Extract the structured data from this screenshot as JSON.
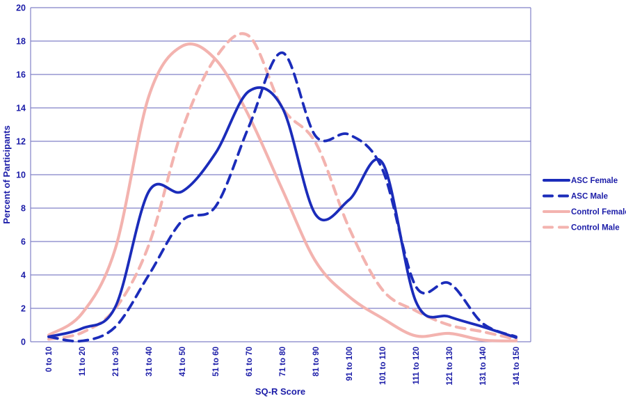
{
  "chart_data": {
    "type": "line",
    "title": "",
    "xlabel": "SQ-R Score",
    "ylabel": "Percent of Participants",
    "categories": [
      "0 to 10",
      "11 to 20",
      "21 to 30",
      "31 to 40",
      "41 to 50",
      "51 to 60",
      "61 to 70",
      "71 to 80",
      "81 to 90",
      "91 to 100",
      "101 to 110",
      "111 to 120",
      "121 to 130",
      "131 to 140",
      "141 to 150"
    ],
    "series": [
      {
        "name": "ASC Female",
        "color": "#1B2CBA",
        "dash": false,
        "values": [
          0.3,
          0.8,
          2.1,
          9.0,
          9.0,
          11.3,
          15.0,
          14.0,
          7.6,
          8.5,
          10.7,
          2.4,
          1.5,
          0.9,
          0.25
        ]
      },
      {
        "name": "ASC Male",
        "color": "#1B2CBA",
        "dash": true,
        "values": [
          0.3,
          0.05,
          0.9,
          4.0,
          7.25,
          8.1,
          12.9,
          17.3,
          12.3,
          12.4,
          10.3,
          3.3,
          3.5,
          1.1,
          0.3
        ]
      },
      {
        "name": "Control Female",
        "color": "#F3B3AF",
        "dash": false,
        "values": [
          0.4,
          1.7,
          5.6,
          14.7,
          17.7,
          16.9,
          13.5,
          9.1,
          4.8,
          2.7,
          1.4,
          0.35,
          0.5,
          0.1,
          0.05
        ]
      },
      {
        "name": "Control Male",
        "color": "#F3B3AF",
        "dash": true,
        "values": [
          0.15,
          0.55,
          2.0,
          5.8,
          12.7,
          17.0,
          18.3,
          14.0,
          11.9,
          6.8,
          3.1,
          1.85,
          1.0,
          0.6,
          0.15
        ]
      }
    ],
    "ylim": [
      0,
      20
    ],
    "ytick_step": 2,
    "grid": "horizontal",
    "legend_position": "right",
    "smooth": true,
    "background": "#FFFFFF",
    "text_color": "#1B1CA8",
    "grid_color": "#8181C7"
  }
}
